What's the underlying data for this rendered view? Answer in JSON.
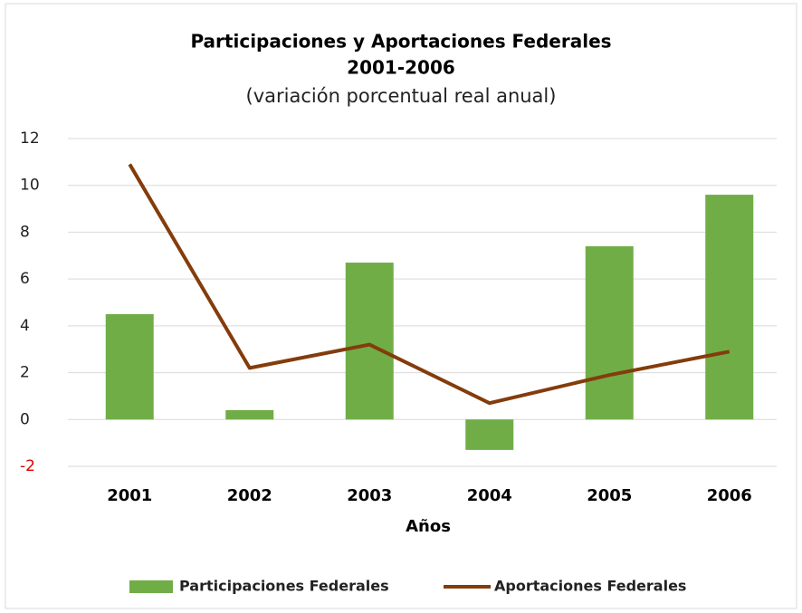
{
  "chart_data": {
    "type": "bar-line",
    "title": "Participaciones y Aportaciones Federales",
    "title_line2": "2001-2006",
    "subtitle": "(variación porcentual real anual)",
    "x_label": "Años",
    "categories": [
      "2001",
      "2002",
      "2003",
      "2004",
      "2005",
      "2006"
    ],
    "series": [
      {
        "name": "Participaciones Federales",
        "type": "bar",
        "color": "#70ad47",
        "values": [
          4.5,
          0.4,
          6.7,
          -1.3,
          7.4,
          9.6
        ]
      },
      {
        "name": "Aportaciones Federales",
        "type": "line",
        "color": "#843c0c",
        "values": [
          10.9,
          2.2,
          3.2,
          0.7,
          1.9,
          2.9
        ]
      }
    ],
    "ylim": [
      -2,
      12
    ],
    "yticks": [
      -2,
      0,
      2,
      4,
      6,
      8,
      10,
      12
    ],
    "grid": true,
    "legend": "bottom"
  }
}
